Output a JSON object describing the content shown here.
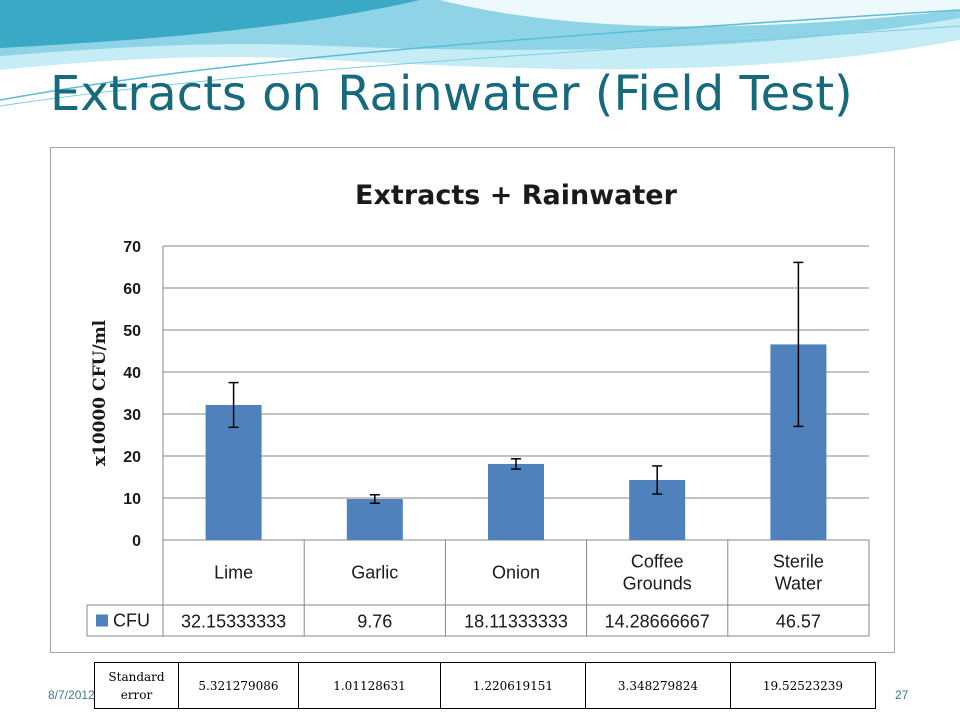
{
  "slide": {
    "title": "Extracts on Rainwater (Field Test)",
    "date": "8/7/2012",
    "page_number": "27"
  },
  "colors": {
    "title": "#17697c",
    "bar": "#4f81bd",
    "grid": "#878787",
    "wave_light": "#c6ecf5",
    "wave_mid": "#8fd4e6",
    "wave_dark": "#3aa9c6"
  },
  "chart_data": {
    "type": "bar",
    "title": "Extracts + Rainwater",
    "xlabel": "",
    "ylabel": "x10000 CFU/ml",
    "ylim": [
      0,
      70
    ],
    "yticks": [
      0,
      10,
      20,
      30,
      40,
      50,
      60,
      70
    ],
    "grid": true,
    "legend": "data-table",
    "categories": [
      [
        "Lime"
      ],
      [
        "Garlic"
      ],
      [
        "Onion"
      ],
      [
        "Coffee",
        "Grounds"
      ],
      [
        "Sterile",
        "Water"
      ]
    ],
    "series": [
      {
        "name": "CFU",
        "values": [
          32.15333333,
          9.76,
          18.11333333,
          14.28666667,
          46.57
        ],
        "value_labels": [
          "32.15333333",
          "9.76",
          "18.11333333",
          "14.28666667",
          "46.57"
        ],
        "error": [
          5.321279086,
          1.01128631,
          1.220619151,
          3.348279824,
          19.52523239
        ]
      }
    ]
  },
  "se_table": {
    "header": [
      "Standard",
      "error"
    ],
    "values": [
      "5.321279086",
      "1.01128631",
      "1.220619151",
      "3.348279824",
      "19.52523239"
    ]
  }
}
